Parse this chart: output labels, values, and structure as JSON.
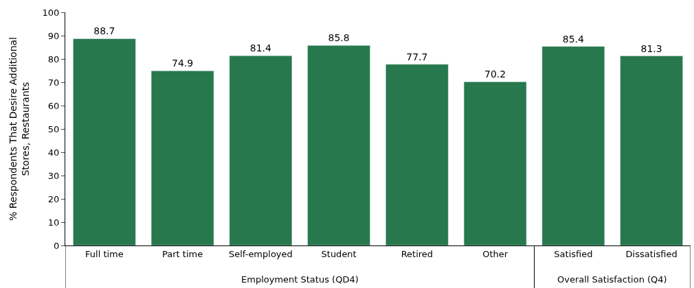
{
  "chart_data": {
    "type": "bar",
    "ylabel": "% Respondents That Desire Additional\nStores, Restaurants",
    "categories": [
      "Full time",
      "Part time",
      "Self-employed",
      "Student",
      "Retired",
      "Other",
      "Satisfied",
      "Dissatisfied"
    ],
    "values": [
      88.7,
      74.9,
      81.4,
      85.8,
      77.7,
      70.2,
      85.4,
      81.3
    ],
    "color": "#27784d",
    "ylim": [
      0,
      100
    ],
    "yticks": [
      0,
      10,
      20,
      30,
      40,
      50,
      60,
      70,
      80,
      90,
      100
    ],
    "data_labels": true,
    "annotations": [
      "Employment Status (QD4)",
      "Overall Satisfaction (Q4)"
    ]
  }
}
